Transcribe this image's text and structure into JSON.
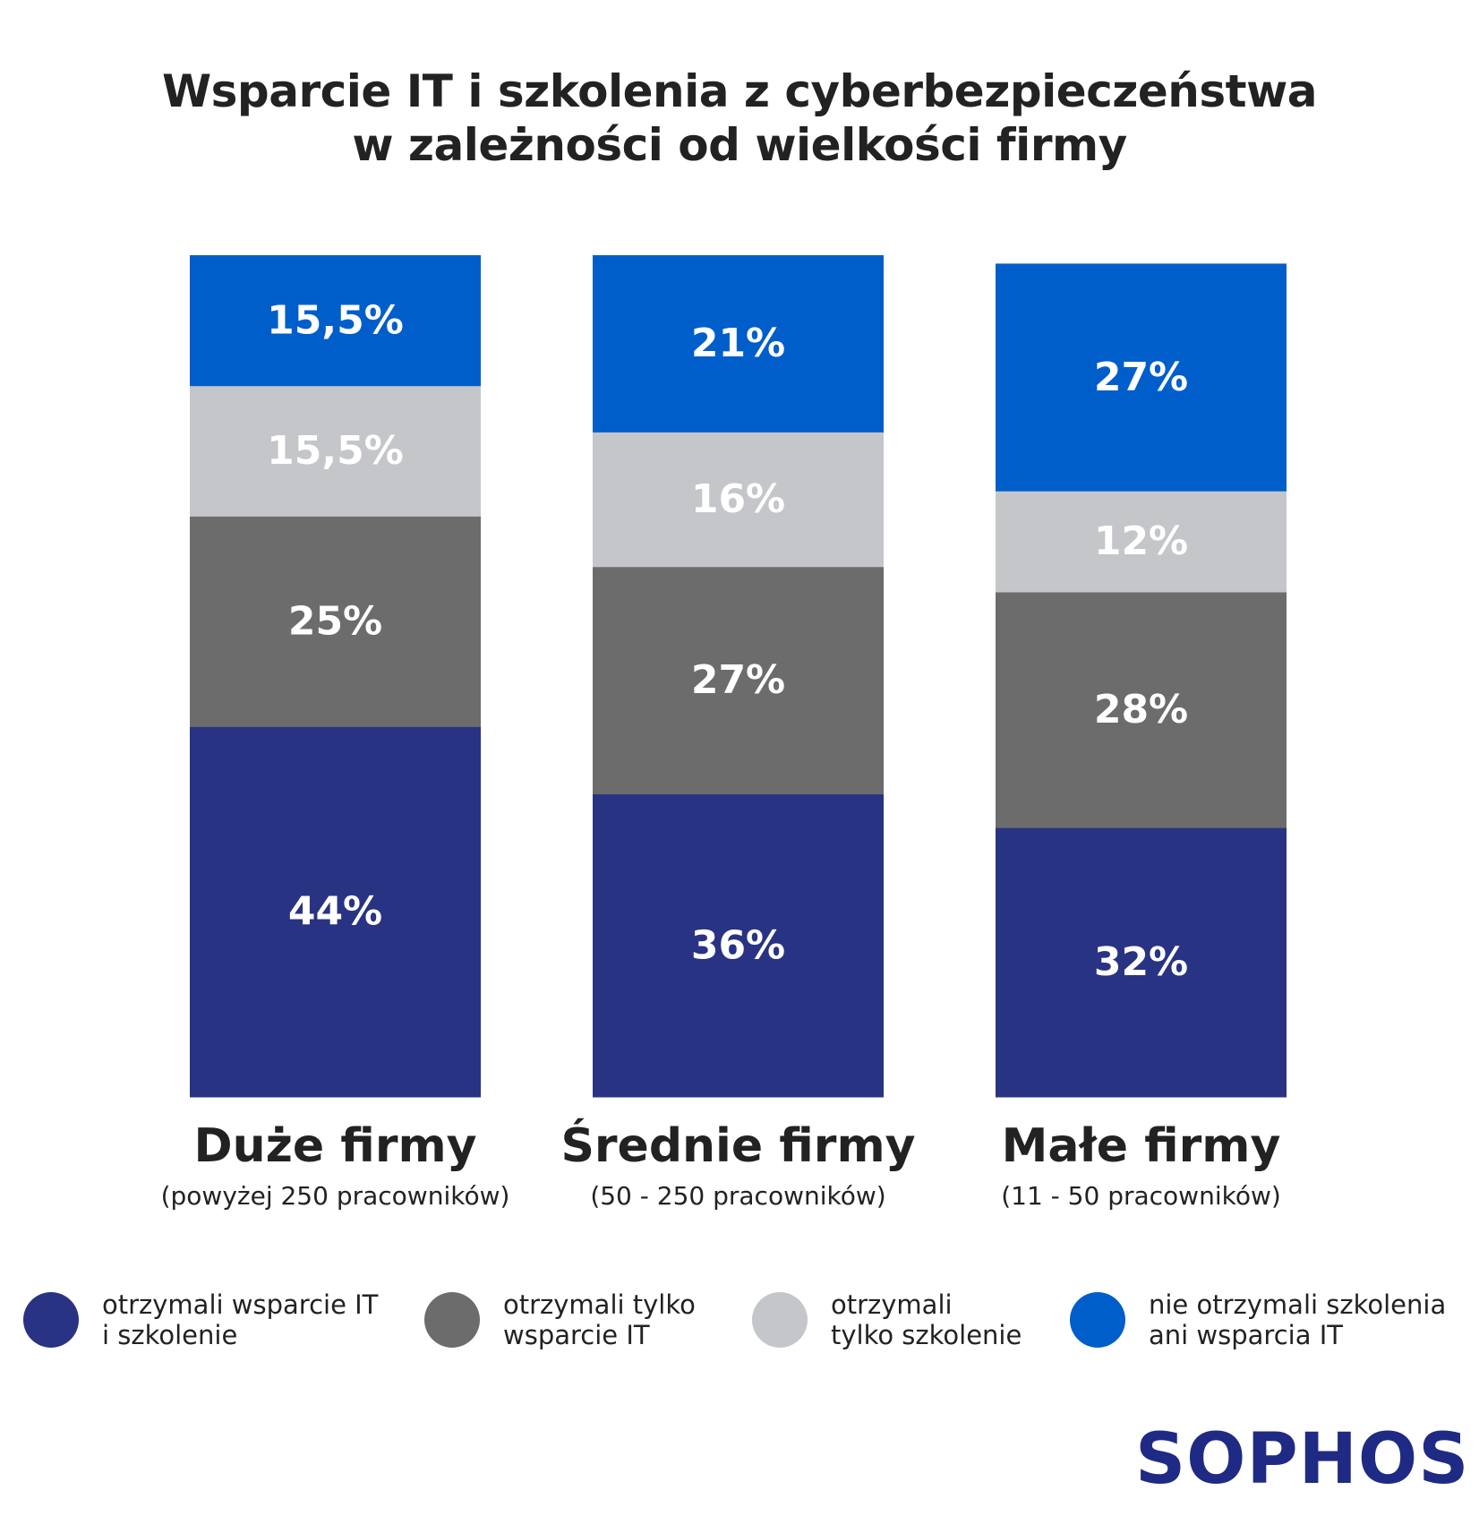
{
  "title": {
    "line1": "Wsparcie IT i szkolenia z cyberbezpieczeństwa",
    "line2": "w zależności od wielkości firmy"
  },
  "chart_data": {
    "type": "bar",
    "stacked": true,
    "title": "Wsparcie IT i szkolenia z cyberbezpieczeństwa w zależności od wielkości firmy",
    "categories": [
      "Duże firmy",
      "Średnie firmy",
      "Małe firmy"
    ],
    "category_subtitles": [
      "(powyżej 250 pracowników)",
      "(50 - 250 pracowników)",
      "(11 - 50 pracowników)"
    ],
    "series": [
      {
        "name": "otrzymali wsparcie IT i szkolenie",
        "color": "#283383",
        "text_color": "#ffffff",
        "values": [
          44,
          36,
          32
        ],
        "labels": [
          "44%",
          "36%",
          "32%"
        ]
      },
      {
        "name": "otrzymali tylko wsparcie IT",
        "color": "#6c6c6c",
        "text_color": "#ffffff",
        "values": [
          25,
          27,
          28
        ],
        "labels": [
          "25%",
          "27%",
          "28%"
        ]
      },
      {
        "name": "otrzymali tylko szkolenie",
        "color": "#c4c6ca",
        "text_color": "#ffffff",
        "values": [
          15.5,
          16,
          12
        ],
        "labels": [
          "15,5%",
          "16%",
          "12%"
        ]
      },
      {
        "name": "nie otrzymali szkolenia ani wsparcia IT",
        "color": "#005ecb",
        "text_color": "#ffffff",
        "values": [
          15.5,
          21,
          27
        ],
        "labels": [
          "15,5%",
          "21%",
          "27%"
        ]
      }
    ],
    "ylim": [
      0,
      100
    ],
    "xlabel": "",
    "ylabel": "",
    "legend": "bottom",
    "grid": false
  },
  "legend": [
    {
      "label": "otrzymali wsparcie IT\ni szkolenie",
      "color": "#283383"
    },
    {
      "label": "otrzymali tylko\nwsparcie IT",
      "color": "#6c6c6c"
    },
    {
      "label": "otrzymali\ntylko szkolenie",
      "color": "#c4c6ca"
    },
    {
      "label": "nie otrzymali szkolenia\nani wsparcia IT",
      "color": "#005ecb"
    }
  ],
  "logo": {
    "text": "SOPHOS",
    "color": "#1f2a85"
  }
}
